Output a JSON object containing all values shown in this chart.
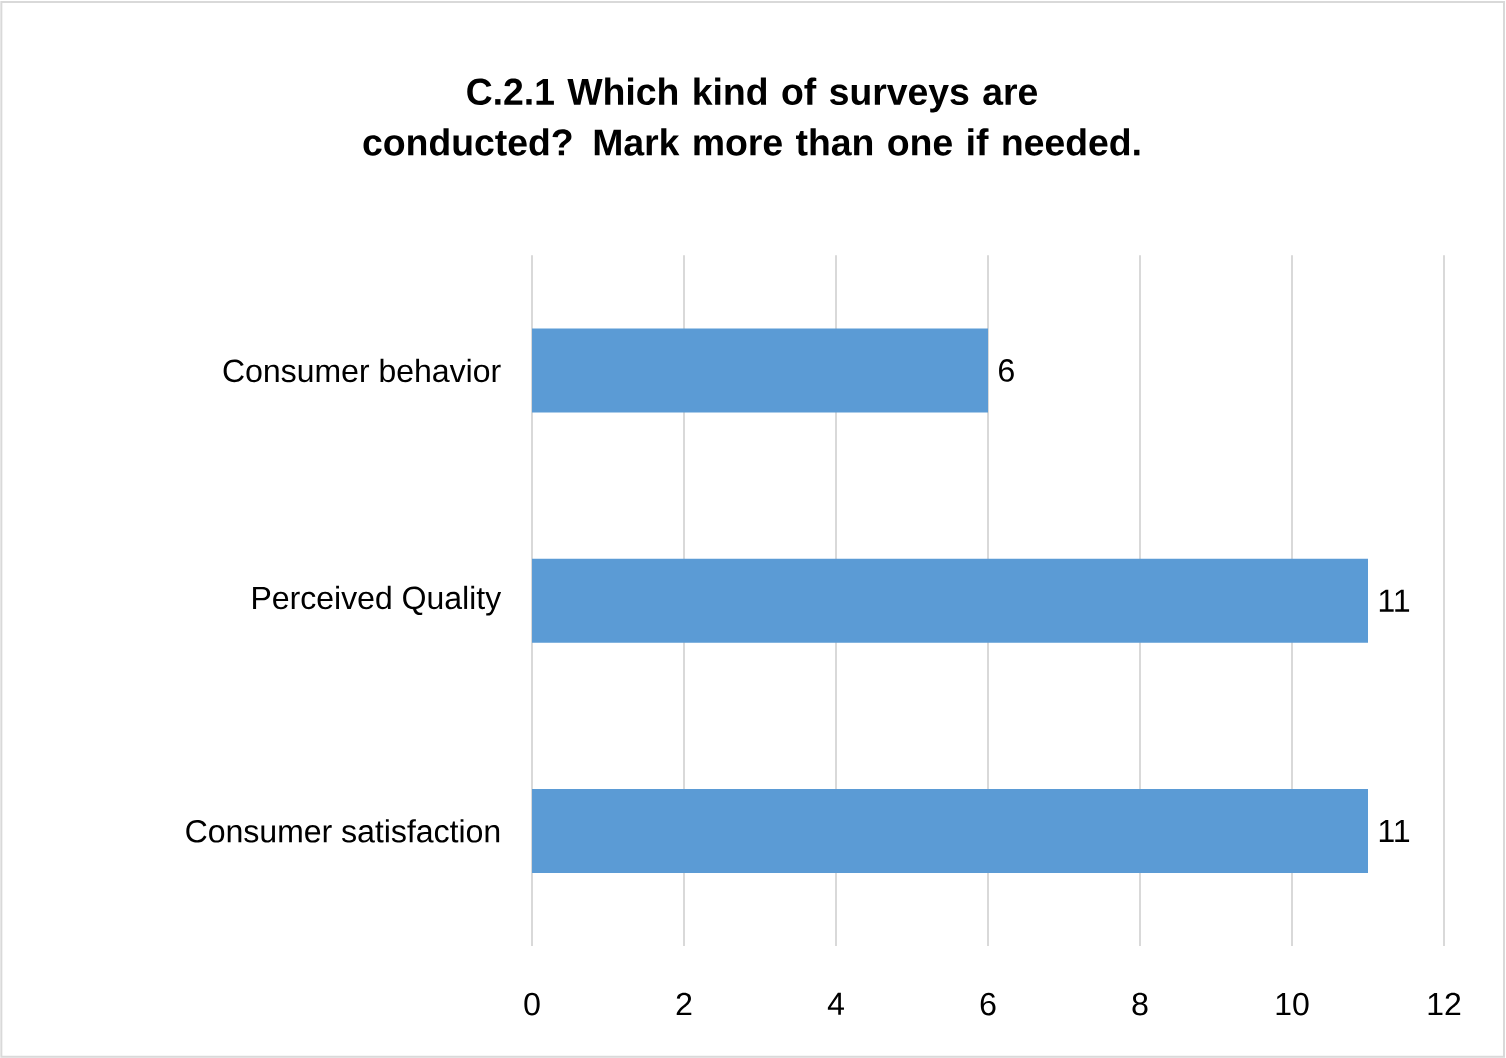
{
  "chart_data": {
    "type": "bar",
    "orientation": "horizontal",
    "title": "C.2.1 Which kind of surveys are conducted? Mark more than one if needed.",
    "categories": [
      "Consumer behavior",
      "Perceived Quality",
      "Consumer satisfaction"
    ],
    "values": [
      6,
      11,
      11
    ],
    "color": "#5b9bd5",
    "xlim": [
      0,
      12
    ],
    "xticks": [
      0,
      2,
      4,
      6,
      8,
      10,
      12
    ],
    "grid": "x",
    "data_labels": true
  }
}
